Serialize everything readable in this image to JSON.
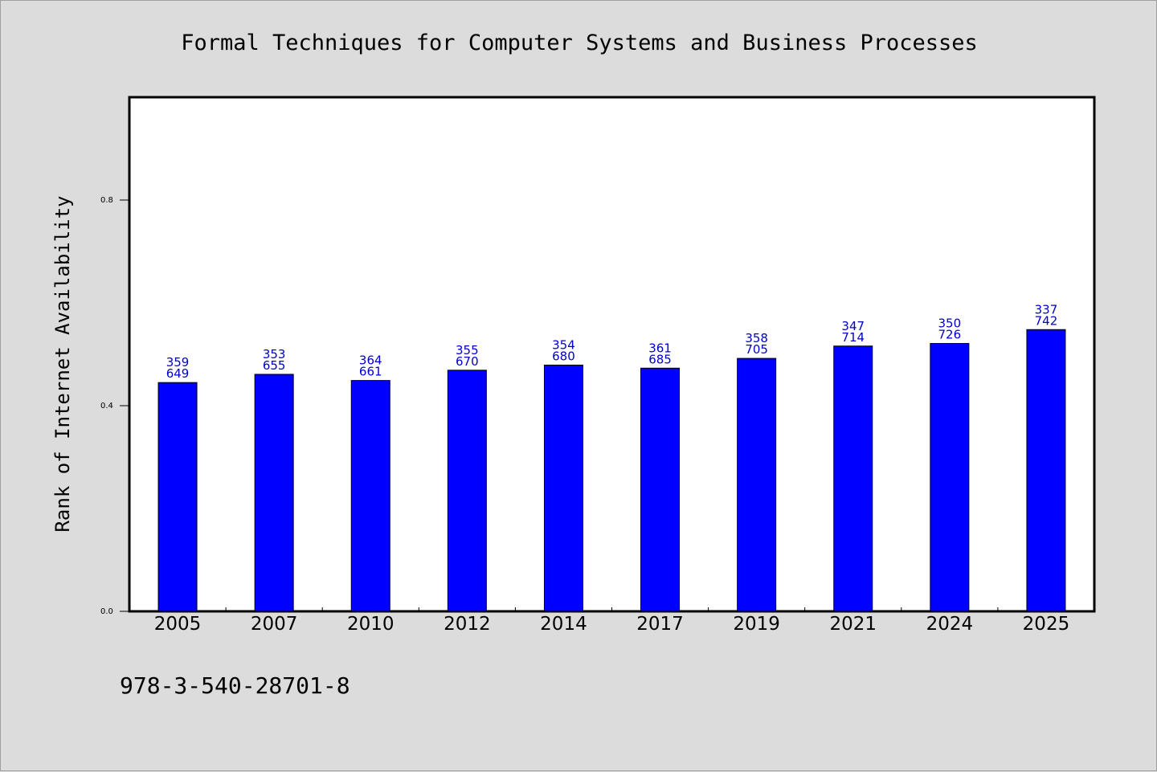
{
  "chart_data": {
    "type": "bar",
    "title": "Formal Techniques for Computer Systems and Business Processes",
    "xlabel": "",
    "ylabel": "Rank of Internet Availability",
    "categories": [
      "2005",
      "2007",
      "2010",
      "2012",
      "2014",
      "2017",
      "2019",
      "2021",
      "2024",
      "2025"
    ],
    "values": [
      0.445,
      0.461,
      0.449,
      0.469,
      0.479,
      0.473,
      0.492,
      0.516,
      0.521,
      0.548
    ],
    "labels_top": [
      "359",
      "353",
      "364",
      "355",
      "354",
      "361",
      "358",
      "347",
      "350",
      "337"
    ],
    "labels_bottom": [
      "649",
      "655",
      "661",
      "670",
      "680",
      "685",
      "705",
      "714",
      "726",
      "742"
    ],
    "ylim": [
      0,
      1.0
    ],
    "yticks": [
      0.0,
      0.4,
      0.8
    ],
    "ytick_labels": [
      "0.0",
      "0.4",
      "0.8"
    ],
    "grid": false,
    "colors": {
      "bar": "#0000ff",
      "bar_edge": "#000000",
      "label": "#0000cc",
      "background": "#dcdcdc",
      "plot_bg": "#ffffff"
    }
  },
  "footer": {
    "code": "978-3-540-28701-8"
  }
}
